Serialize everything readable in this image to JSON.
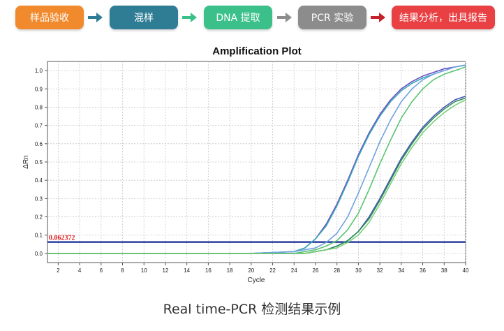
{
  "workflow": {
    "steps": [
      {
        "label": "样品验收",
        "color": "#f08a2c"
      },
      {
        "label": "混样",
        "color": "#2f7d95"
      },
      {
        "label": "DNA 提取",
        "color": "#3cc08a"
      },
      {
        "label": "PCR 实验",
        "color": "#8c8c8c"
      },
      {
        "label": "结果分析，出具报告",
        "color": "#e84043"
      }
    ],
    "arrow_colors": [
      "#2f7d95",
      "#2f7d95",
      "#3cc08a",
      "#8c8c8c",
      "#c4212a"
    ]
  },
  "caption": "Real time-PCR 检测结果示例",
  "chart_data": {
    "type": "line",
    "title": "Amplification Plot",
    "xlabel": "Cycle",
    "ylabel": "ΔRn",
    "xlim": [
      1,
      40
    ],
    "ylim": [
      -0.05,
      1.05
    ],
    "xticks": [
      2,
      4,
      6,
      8,
      10,
      12,
      14,
      16,
      18,
      20,
      22,
      24,
      26,
      28,
      30,
      32,
      34,
      36,
      38,
      40
    ],
    "yticks": [
      0.0,
      0.1,
      0.2,
      0.3,
      0.4,
      0.5,
      0.6,
      0.7,
      0.8,
      0.9,
      1.0
    ],
    "ytick_labels": [
      "0.0",
      "0.1",
      "0.2",
      "0.3",
      "0.4",
      "0.5",
      "0.6",
      "0.7",
      "0.8",
      "0.9",
      "1.0"
    ],
    "grid": true,
    "threshold": {
      "value": 0.062372,
      "label": "0.062372",
      "color": "#2b3fa0",
      "label_color": "#e01818"
    },
    "series": [
      {
        "color": "#6a4fc4",
        "x": [
          1,
          10,
          20,
          24,
          25,
          26,
          27,
          28,
          29,
          30,
          31,
          32,
          33,
          34,
          35,
          36,
          37,
          38,
          39,
          40
        ],
        "y": [
          0.0,
          0.0,
          0.0,
          0.01,
          0.03,
          0.08,
          0.16,
          0.27,
          0.4,
          0.54,
          0.66,
          0.76,
          0.84,
          0.9,
          0.94,
          0.97,
          0.99,
          1.01,
          1.02,
          1.03
        ]
      },
      {
        "color": "#3aa8b8",
        "x": [
          1,
          10,
          20,
          24,
          25,
          26,
          27,
          28,
          29,
          30,
          31,
          32,
          33,
          34,
          35,
          36,
          37,
          38,
          39,
          40
        ],
        "y": [
          0.0,
          0.0,
          0.0,
          0.01,
          0.03,
          0.08,
          0.15,
          0.26,
          0.39,
          0.53,
          0.65,
          0.75,
          0.83,
          0.89,
          0.93,
          0.96,
          0.98,
          1.0,
          1.02,
          1.03
        ]
      },
      {
        "color": "#6fa2e0",
        "x": [
          1,
          10,
          20,
          24,
          25,
          26,
          27,
          28,
          29,
          30,
          31,
          32,
          33,
          34,
          35,
          36,
          37,
          38,
          39,
          40
        ],
        "y": [
          0.0,
          0.0,
          0.0,
          0.01,
          0.02,
          0.03,
          0.06,
          0.11,
          0.2,
          0.33,
          0.47,
          0.61,
          0.73,
          0.83,
          0.9,
          0.95,
          0.98,
          1.0,
          1.02,
          1.03
        ]
      },
      {
        "color": "#58c470",
        "x": [
          1,
          10,
          20,
          24,
          25,
          26,
          27,
          28,
          29,
          30,
          31,
          32,
          33,
          34,
          35,
          36,
          37,
          38,
          39,
          40
        ],
        "y": [
          0.0,
          0.0,
          0.0,
          0.0,
          0.01,
          0.02,
          0.04,
          0.07,
          0.13,
          0.22,
          0.35,
          0.49,
          0.62,
          0.74,
          0.83,
          0.9,
          0.95,
          0.98,
          1.0,
          1.02
        ]
      },
      {
        "color": "#4a55b8",
        "x": [
          1,
          10,
          20,
          25,
          26,
          27,
          28,
          29,
          30,
          31,
          32,
          33,
          34,
          35,
          36,
          37,
          38,
          39,
          40
        ],
        "y": [
          0.0,
          0.0,
          0.0,
          0.0,
          0.01,
          0.02,
          0.04,
          0.07,
          0.12,
          0.2,
          0.3,
          0.41,
          0.52,
          0.61,
          0.69,
          0.75,
          0.8,
          0.84,
          0.86
        ]
      },
      {
        "color": "#2e8d5c",
        "x": [
          1,
          10,
          20,
          25,
          26,
          27,
          28,
          29,
          30,
          31,
          32,
          33,
          34,
          35,
          36,
          37,
          38,
          39,
          40
        ],
        "y": [
          0.0,
          0.0,
          0.0,
          0.0,
          0.01,
          0.02,
          0.04,
          0.07,
          0.12,
          0.19,
          0.29,
          0.4,
          0.51,
          0.6,
          0.68,
          0.74,
          0.79,
          0.83,
          0.85
        ]
      },
      {
        "color": "#7ad07a",
        "x": [
          1,
          10,
          20,
          25,
          26,
          27,
          28,
          29,
          30,
          31,
          32,
          33,
          34,
          35,
          36,
          37,
          38,
          39,
          40
        ],
        "y": [
          0.0,
          0.0,
          0.0,
          0.0,
          0.01,
          0.02,
          0.03,
          0.06,
          0.1,
          0.17,
          0.27,
          0.38,
          0.49,
          0.58,
          0.66,
          0.72,
          0.77,
          0.81,
          0.84
        ]
      }
    ]
  }
}
